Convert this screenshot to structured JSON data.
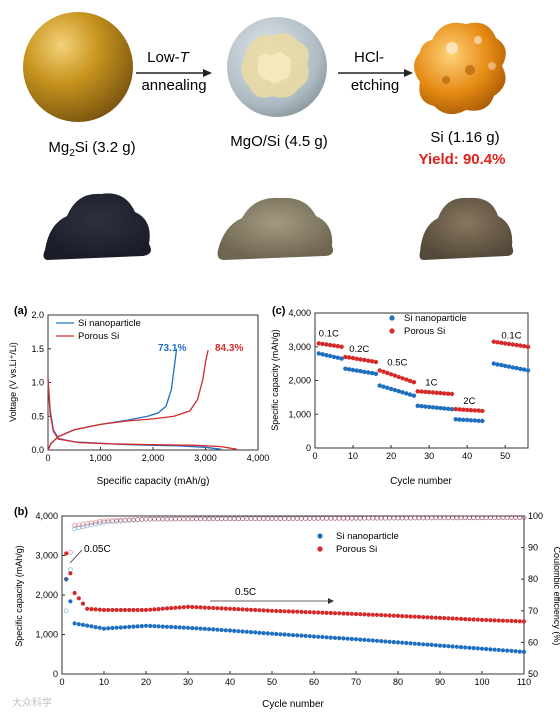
{
  "top": {
    "step1": {
      "arrow_label_1": "Low-",
      "arrow_label_T": "T",
      "arrow_label_2": "annealing"
    },
    "step2": {
      "arrow_label_1": "HCl-",
      "arrow_label_2": "etching"
    },
    "labels": {
      "mg2si_a": "Mg",
      "mg2si_sub": "2",
      "mg2si_b": "Si (3.2 g)",
      "mgo_si": "MgO/Si (4.5 g)",
      "si": "Si (1.16 g)",
      "yield": "Yield: 90.4%"
    },
    "colors": {
      "yield": "#e0201b",
      "gold": "#c9951f",
      "porous": "#e58a14"
    }
  },
  "watermark": "大众科学",
  "chart_data": [
    {
      "panel": "(a)",
      "type": "line",
      "xlabel": "Specific capacity (mAh/g)",
      "ylabel": "Voltage (V vs.Li⁺/Li)",
      "xlim": [
        0,
        4000
      ],
      "ylim": [
        0,
        2.0
      ],
      "xticks": [
        "0",
        "1,000",
        "2,000",
        "3,000",
        "4,000"
      ],
      "yticks": [
        "0.0",
        "0.5",
        "1.0",
        "1.5",
        "2.0"
      ],
      "annotations": [
        {
          "text": "73.1%",
          "color": "#1f6fc0"
        },
        {
          "text": "84.3%",
          "color": "#d42a2a"
        }
      ],
      "series": [
        {
          "name": "Si nanoparticle",
          "color": "#1f6fc0",
          "discharge": [
            [
              0,
              1.05
            ],
            [
              40,
              0.6
            ],
            [
              100,
              0.3
            ],
            [
              200,
              0.17
            ],
            [
              500,
              0.12
            ],
            [
              1000,
              0.1
            ],
            [
              1500,
              0.08
            ],
            [
              2000,
              0.07
            ],
            [
              2500,
              0.06
            ],
            [
              3000,
              0.04
            ],
            [
              3300,
              0.01
            ]
          ],
          "charge": [
            [
              0,
              0
            ],
            [
              60,
              0.1
            ],
            [
              200,
              0.2
            ],
            [
              500,
              0.3
            ],
            [
              1000,
              0.38
            ],
            [
              1500,
              0.44
            ],
            [
              1900,
              0.5
            ],
            [
              2100,
              0.55
            ],
            [
              2250,
              0.65
            ],
            [
              2350,
              0.9
            ],
            [
              2400,
              1.2
            ],
            [
              2450,
              1.5
            ]
          ]
        },
        {
          "name": "Porous Si",
          "color": "#d42a2a",
          "discharge": [
            [
              0,
              1.05
            ],
            [
              40,
              0.55
            ],
            [
              100,
              0.28
            ],
            [
              200,
              0.16
            ],
            [
              600,
              0.11
            ],
            [
              1200,
              0.09
            ],
            [
              2000,
              0.08
            ],
            [
              2800,
              0.07
            ],
            [
              3300,
              0.05
            ],
            [
              3600,
              0.01
            ]
          ],
          "charge": [
            [
              0,
              0
            ],
            [
              60,
              0.1
            ],
            [
              200,
              0.2
            ],
            [
              500,
              0.3
            ],
            [
              1000,
              0.38
            ],
            [
              1500,
              0.43
            ],
            [
              2000,
              0.46
            ],
            [
              2400,
              0.5
            ],
            [
              2700,
              0.58
            ],
            [
              2850,
              0.75
            ],
            [
              2950,
              1.05
            ],
            [
              3000,
              1.3
            ],
            [
              3050,
              1.48
            ]
          ]
        }
      ]
    },
    {
      "panel": "(c)",
      "type": "scatter",
      "xlabel": "Cycle number",
      "ylabel": "Specific capacity (mAh/g)",
      "xlim": [
        0,
        56
      ],
      "ylim": [
        0,
        4000
      ],
      "xticks": [
        "0",
        "10",
        "20",
        "30",
        "40",
        "50"
      ],
      "yticks": [
        "0",
        "1,000",
        "2,000",
        "3,000",
        "4,000"
      ],
      "rate_labels": [
        "0.1C",
        "0.2C",
        "0.5C",
        "1C",
        "2C",
        "0.1C"
      ],
      "series": [
        {
          "name": "Si nanoparticle",
          "color": "#1f6fc0",
          "segments": [
            [
              1,
              7,
              2800,
              2650
            ],
            [
              8,
              16,
              2350,
              2200
            ],
            [
              17,
              26,
              1850,
              1550
            ],
            [
              27,
              36,
              1250,
              1150
            ],
            [
              37,
              44,
              850,
              800
            ],
            [
              47,
              56,
              2500,
              2300
            ]
          ]
        },
        {
          "name": "Porous Si",
          "color": "#d42a2a",
          "segments": [
            [
              1,
              7,
              3100,
              3000
            ],
            [
              8,
              16,
              2700,
              2550
            ],
            [
              17,
              26,
              2300,
              1950
            ],
            [
              27,
              36,
              1680,
              1600
            ],
            [
              37,
              44,
              1150,
              1100
            ],
            [
              47,
              56,
              3150,
              3000
            ]
          ]
        }
      ]
    },
    {
      "panel": "(b)",
      "type": "scatter",
      "xlabel": "Cycle number",
      "ylabel": "Specific capacity (mAh/g)",
      "y2label": "Coulombic efficiency (%)",
      "xlim": [
        0,
        110
      ],
      "ylim": [
        0,
        4000
      ],
      "y2lim": [
        50,
        100
      ],
      "xticks": [
        "0",
        "10",
        "20",
        "30",
        "40",
        "50",
        "60",
        "70",
        "80",
        "90",
        "100",
        "110"
      ],
      "yticks": [
        "0",
        "1,000",
        "2,000",
        "3,000",
        "4,000"
      ],
      "y2ticks": [
        "50",
        "60",
        "70",
        "80",
        "90",
        "100"
      ],
      "annotations": [
        "0.05C",
        "0.5C"
      ],
      "series": [
        {
          "name": "Si nanoparticle",
          "color": "#1f6fc0",
          "capacity": [
            [
              1,
              2400
            ],
            [
              3,
              1280
            ],
            [
              10,
              1150
            ],
            [
              20,
              1220
            ],
            [
              30,
              1170
            ],
            [
              40,
              1100
            ],
            [
              50,
              1020
            ],
            [
              60,
              950
            ],
            [
              70,
              880
            ],
            [
              80,
              800
            ],
            [
              90,
              720
            ],
            [
              100,
              640
            ],
            [
              110,
              560
            ]
          ],
          "ce": [
            [
              1,
              70
            ],
            [
              3,
              96
            ],
            [
              10,
              98
            ],
            [
              20,
              99
            ],
            [
              110,
              99.5
            ]
          ]
        },
        {
          "name": "Porous Si",
          "color": "#d42a2a",
          "capacity": [
            [
              1,
              3050
            ],
            [
              3,
              2050
            ],
            [
              6,
              1650
            ],
            [
              10,
              1620
            ],
            [
              20,
              1620
            ],
            [
              30,
              1700
            ],
            [
              40,
              1650
            ],
            [
              50,
              1600
            ],
            [
              60,
              1560
            ],
            [
              70,
              1520
            ],
            [
              80,
              1470
            ],
            [
              90,
              1420
            ],
            [
              100,
              1370
            ],
            [
              110,
              1330
            ]
          ],
          "ce": [
            [
              1,
              80
            ],
            [
              3,
              97
            ],
            [
              10,
              98.5
            ],
            [
              20,
              99
            ],
            [
              110,
              99.5
            ]
          ]
        }
      ]
    }
  ]
}
